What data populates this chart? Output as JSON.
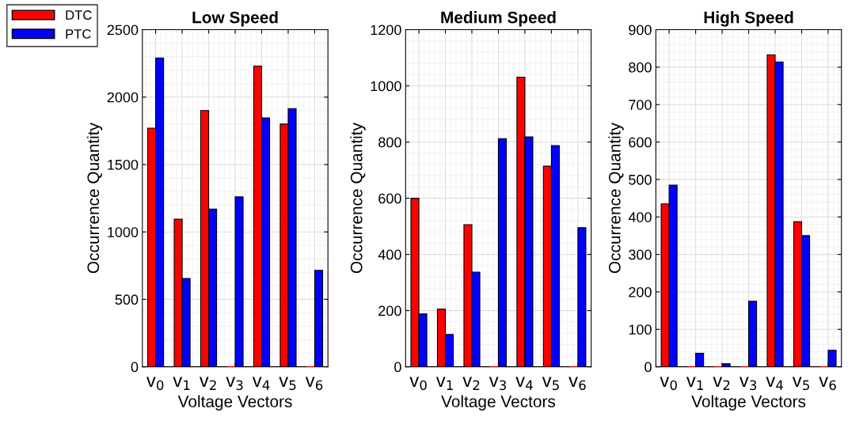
{
  "chart_data": [
    {
      "type": "bar",
      "title": "Low Speed",
      "xlabel": "Voltage Vectors",
      "ylabel": "Occurrence Quantity",
      "categories": [
        "v$_{0}$",
        "v$_{1}$",
        "v$_{2}$",
        "v$_{3}$",
        "v$_{4}$",
        "v$_{5}$",
        "v$_{6}$"
      ],
      "series": [
        {
          "name": "DTC",
          "color": "#ff0000",
          "values": [
            1770,
            1095,
            1900,
            0,
            2230,
            1800,
            0
          ]
        },
        {
          "name": "PTC",
          "color": "#0000ff",
          "values": [
            2290,
            655,
            1170,
            1260,
            1845,
            1915,
            715
          ]
        }
      ],
      "ylim": [
        0,
        2500
      ],
      "yticks": [
        0,
        500,
        1000,
        1500,
        2000,
        2500
      ],
      "grid": true,
      "legend": "top left"
    },
    {
      "type": "bar",
      "title": "Medium Speed",
      "xlabel": "Voltage Vectors",
      "ylabel": "Occurrence Quantity",
      "categories": [
        "v$_{0}$",
        "v$_{1}$",
        "v$_{2}$",
        "v$_{3}$",
        "v$_{4}$",
        "v$_{5}$",
        "v$_{6}$"
      ],
      "series": [
        {
          "color": "#ff0000",
          "values": [
            600,
            205,
            506,
            0,
            1031,
            714,
            0
          ]
        },
        {
          "color": "#0000ff",
          "values": [
            188,
            115,
            337,
            812,
            818,
            787,
            495
          ]
        }
      ],
      "ylim": [
        0,
        1200
      ],
      "yticks": [
        0,
        200,
        400,
        600,
        800,
        1000,
        1200
      ],
      "grid": true
    },
    {
      "type": "bar",
      "title": "High Speed",
      "xlabel": "Voltage Vectors",
      "ylabel": "Occurrence Quantity",
      "categories": [
        "v$_{0}$",
        "v$_{1}$",
        "v$_{2}$",
        "v$_{3}$",
        "v$_{4}$",
        "v$_{5}$",
        "v$_{6}$"
      ],
      "series": [
        {
          "color": "#ff0000",
          "values": [
            435,
            0,
            0,
            0,
            833,
            387,
            0
          ]
        },
        {
          "color": "#0000ff",
          "values": [
            485,
            36,
            8,
            175,
            814,
            350,
            44
          ]
        }
      ],
      "ylim": [
        0,
        900
      ],
      "yticks": [
        0,
        100,
        200,
        300,
        400,
        500,
        600,
        700,
        800,
        900
      ],
      "grid": true
    }
  ]
}
